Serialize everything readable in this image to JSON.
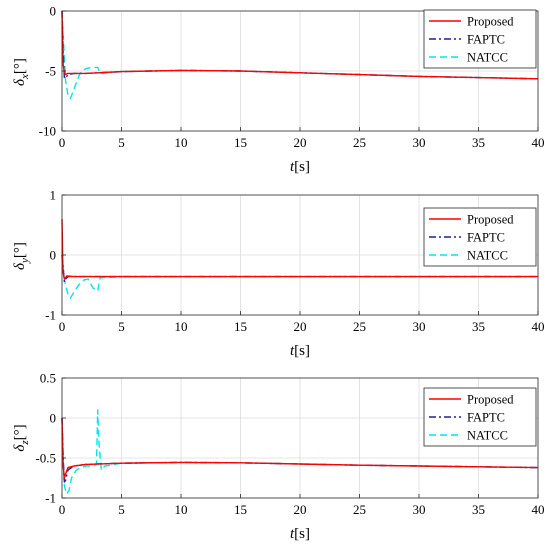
{
  "chart_data": [
    {
      "type": "line",
      "ylabel_symbol": "δ",
      "ylabel_sub": "x",
      "ylabel_unit": "[°]",
      "xlabel_var": "t",
      "xlabel_unit": "[s]",
      "xlim": [
        0,
        40
      ],
      "ylim": [
        -10,
        0
      ],
      "xticks": [
        "0",
        "5",
        "10",
        "15",
        "20",
        "25",
        "30",
        "35",
        "40"
      ],
      "yticks": [
        "0",
        "-5",
        "-10"
      ],
      "xtick_values": [
        0,
        5,
        10,
        15,
        20,
        25,
        30,
        35,
        40
      ],
      "ytick_values": [
        0,
        -5,
        -10
      ],
      "grid": true,
      "legend_position": "top-right",
      "series": [
        {
          "name": "Proposed",
          "color": "#ff0000",
          "style": "solid",
          "x": [
            0,
            0.05,
            0.1,
            0.2,
            0.3,
            0.5,
            1,
            2,
            5,
            10,
            15,
            20,
            25,
            30,
            35,
            40
          ],
          "y": [
            0,
            -2.5,
            -4.5,
            -5.1,
            -5.3,
            -5.2,
            -5.2,
            -5.2,
            -5.05,
            -4.95,
            -5.0,
            -5.15,
            -5.3,
            -5.45,
            -5.55,
            -5.65
          ]
        },
        {
          "name": "FAPTC",
          "color": "#1f1f9f",
          "style": "dashdot",
          "x": [
            0,
            0.1,
            0.2,
            0.3,
            0.5,
            1,
            2,
            5,
            10,
            15,
            20,
            25,
            30,
            35,
            40
          ],
          "y": [
            0,
            -3.5,
            -5.6,
            -5.6,
            -5.3,
            -5.2,
            -5.2,
            -5.05,
            -4.95,
            -5.0,
            -5.15,
            -5.3,
            -5.45,
            -5.55,
            -5.65
          ]
        },
        {
          "name": "NATCC",
          "color": "#00e5ee",
          "style": "dashed",
          "x": [
            0,
            0.1,
            0.2,
            0.3,
            0.5,
            0.7,
            0.9,
            1.2,
            1.5,
            2.0,
            2.5,
            3.0,
            3.2,
            5,
            10,
            15,
            20,
            25,
            30,
            35,
            40
          ],
          "y": [
            0,
            -2,
            -4,
            -5.8,
            -7.0,
            -7.3,
            -6.8,
            -6.0,
            -5.2,
            -4.8,
            -4.7,
            -4.7,
            -5.2,
            -5.05,
            -4.95,
            -5.0,
            -5.15,
            -5.3,
            -5.45,
            -5.55,
            -5.65
          ]
        }
      ]
    },
    {
      "type": "line",
      "ylabel_symbol": "δ",
      "ylabel_sub": "y",
      "ylabel_unit": "[°]",
      "xlabel_var": "t",
      "xlabel_unit": "[s]",
      "xlim": [
        0,
        40
      ],
      "ylim": [
        -1,
        1
      ],
      "xticks": [
        "0",
        "5",
        "10",
        "15",
        "20",
        "25",
        "30",
        "35",
        "40"
      ],
      "yticks": [
        "1",
        "0",
        "-1"
      ],
      "xtick_values": [
        0,
        5,
        10,
        15,
        20,
        25,
        30,
        35,
        40
      ],
      "ytick_values": [
        1,
        0,
        -1
      ],
      "grid": true,
      "legend_position": "right",
      "series": [
        {
          "name": "Proposed",
          "color": "#ff0000",
          "style": "solid",
          "x": [
            0,
            0.03,
            0.06,
            0.1,
            0.2,
            0.4,
            1,
            3,
            10,
            20,
            30,
            40
          ],
          "y": [
            0.6,
            0.3,
            -0.1,
            -0.3,
            -0.4,
            -0.35,
            -0.36,
            -0.36,
            -0.36,
            -0.36,
            -0.36,
            -0.36
          ]
        },
        {
          "name": "FAPTC",
          "color": "#1f1f9f",
          "style": "dashdot",
          "x": [
            0,
            0.1,
            0.2,
            0.3,
            0.5,
            1,
            3,
            10,
            20,
            30,
            40
          ],
          "y": [
            0,
            -0.2,
            -0.45,
            -0.4,
            -0.36,
            -0.36,
            -0.36,
            -0.36,
            -0.36,
            -0.36,
            -0.36
          ]
        },
        {
          "name": "NATCC",
          "color": "#00e5ee",
          "style": "dashed",
          "x": [
            0,
            0.1,
            0.3,
            0.5,
            0.7,
            1.0,
            1.4,
            1.8,
            2.2,
            2.6,
            3.0,
            3.2,
            5,
            10,
            20,
            30,
            40
          ],
          "y": [
            0,
            -0.3,
            -0.5,
            -0.65,
            -0.72,
            -0.62,
            -0.5,
            -0.42,
            -0.4,
            -0.55,
            -0.6,
            -0.38,
            -0.36,
            -0.36,
            -0.36,
            -0.36,
            -0.36
          ]
        }
      ]
    },
    {
      "type": "line",
      "ylabel_symbol": "δ",
      "ylabel_sub": "z",
      "ylabel_unit": "[°]",
      "xlabel_var": "t",
      "xlabel_unit": "[s]",
      "xlim": [
        0,
        40
      ],
      "ylim": [
        -1,
        0.5
      ],
      "xticks": [
        "0",
        "5",
        "10",
        "15",
        "20",
        "25",
        "30",
        "35",
        "40"
      ],
      "yticks": [
        "0.5",
        "0",
        "-0.5",
        "-1"
      ],
      "xtick_values": [
        0,
        5,
        10,
        15,
        20,
        25,
        30,
        35,
        40
      ],
      "ytick_values": [
        0.5,
        0,
        -0.5,
        -1
      ],
      "grid": true,
      "legend_position": "top-right",
      "series": [
        {
          "name": "Proposed",
          "color": "#ff0000",
          "style": "solid",
          "x": [
            0,
            0.05,
            0.1,
            0.2,
            0.3,
            0.5,
            1,
            2,
            5,
            10,
            15,
            20,
            25,
            30,
            35,
            40
          ],
          "y": [
            0,
            -0.3,
            -0.6,
            -0.75,
            -0.7,
            -0.62,
            -0.6,
            -0.58,
            -0.565,
            -0.555,
            -0.56,
            -0.575,
            -0.59,
            -0.6,
            -0.61,
            -0.62
          ]
        },
        {
          "name": "FAPTC",
          "color": "#1f1f9f",
          "style": "dashdot",
          "x": [
            0,
            0.1,
            0.2,
            0.3,
            0.5,
            1,
            2,
            5,
            10,
            15,
            20,
            25,
            30,
            35,
            40
          ],
          "y": [
            0,
            -0.5,
            -0.8,
            -0.78,
            -0.65,
            -0.6,
            -0.58,
            -0.565,
            -0.555,
            -0.56,
            -0.575,
            -0.59,
            -0.6,
            -0.61,
            -0.62
          ]
        },
        {
          "name": "NATCC",
          "color": "#00e5ee",
          "style": "dashed",
          "x": [
            0,
            0.1,
            0.2,
            0.4,
            0.6,
            0.8,
            1.2,
            1.6,
            2.0,
            2.5,
            2.9,
            3.0,
            3.1,
            3.3,
            3.6,
            5,
            10,
            15,
            20,
            25,
            30,
            35,
            40
          ],
          "y": [
            0,
            -0.6,
            -0.85,
            -0.95,
            -0.9,
            -0.75,
            -0.65,
            -0.62,
            -0.6,
            -0.6,
            -0.58,
            0.1,
            -0.3,
            -0.65,
            -0.6,
            -0.565,
            -0.555,
            -0.56,
            -0.575,
            -0.59,
            -0.6,
            -0.61,
            -0.62
          ]
        }
      ]
    }
  ]
}
